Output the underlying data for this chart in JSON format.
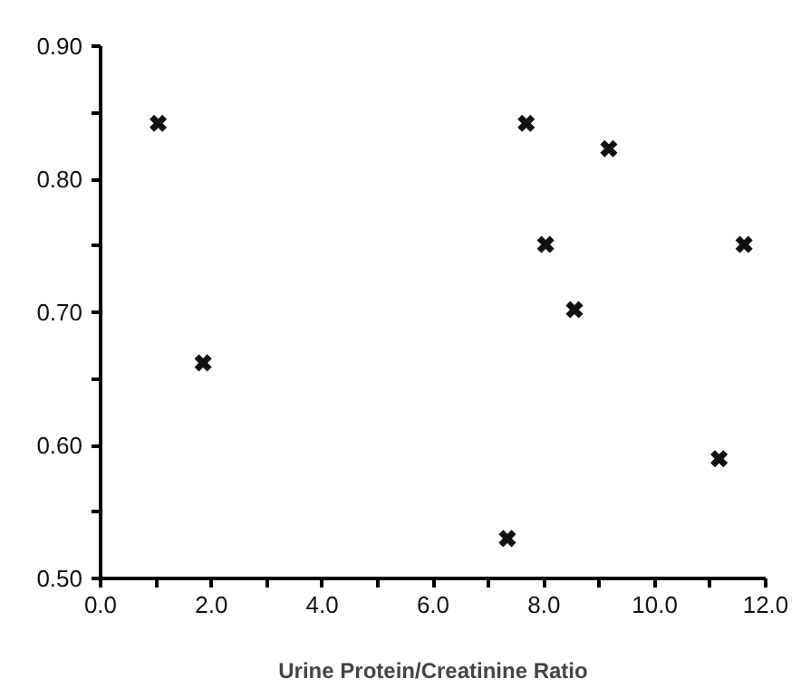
{
  "chart_data": {
    "type": "scatter",
    "xlabel": "Urine Protein/Creatinine Ratio",
    "marker": "cross",
    "grid": false,
    "x": [
      1.04,
      1.85,
      7.34,
      7.68,
      8.03,
      8.55,
      9.17,
      11.16,
      11.61
    ],
    "series": [
      {
        "color": "#111111",
        "values": [
          0.842,
          0.662,
          0.53,
          0.842,
          0.751,
          0.702,
          0.823,
          0.59,
          0.751
        ]
      }
    ],
    "xlim": [
      0,
      12
    ],
    "ylim": [
      0.5,
      0.9
    ],
    "xticks": [
      {
        "value": 0,
        "label": "0.0"
      },
      {
        "value": 1,
        "label": null
      },
      {
        "value": 2,
        "label": "2.0"
      },
      {
        "value": 3,
        "label": null
      },
      {
        "value": 4,
        "label": "4.0"
      },
      {
        "value": 5,
        "label": null
      },
      {
        "value": 6,
        "label": "6.0"
      },
      {
        "value": 7,
        "label": null
      },
      {
        "value": 8,
        "label": "8.0"
      },
      {
        "value": 9,
        "label": null
      },
      {
        "value": 10,
        "label": "10.0"
      },
      {
        "value": 11,
        "label": null
      },
      {
        "value": 12,
        "label": "12.0"
      }
    ],
    "yticks": [
      {
        "value": 0.5,
        "label": "0.50"
      },
      {
        "value": 0.55,
        "label": null
      },
      {
        "value": 0.6,
        "label": "0.60"
      },
      {
        "value": 0.65,
        "label": null
      },
      {
        "value": 0.7,
        "label": "0.70"
      },
      {
        "value": 0.75,
        "label": null
      },
      {
        "value": 0.8,
        "label": "0.80"
      },
      {
        "value": 0.85,
        "label": null
      },
      {
        "value": 0.9,
        "label": "0.90"
      }
    ]
  }
}
